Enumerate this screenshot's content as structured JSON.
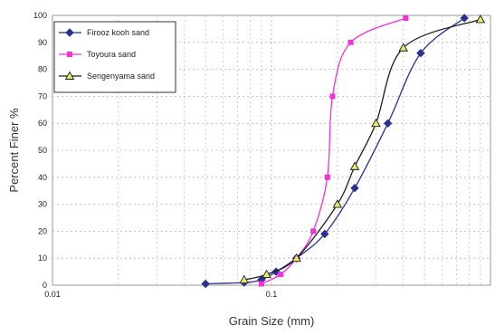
{
  "chart_data": {
    "type": "line",
    "xlabel": "Grain Size (mm)",
    "ylabel": "Percent Finer %",
    "x_scale": "log",
    "xlim": [
      0.01,
      1
    ],
    "ylim": [
      0,
      100
    ],
    "x_ticks": [
      0.01,
      0.1
    ],
    "x_tick_labels": [
      "0.01",
      "0.1"
    ],
    "y_ticks": [
      0,
      10,
      20,
      30,
      40,
      50,
      60,
      70,
      80,
      90,
      100
    ],
    "y_tick_labels": [
      "0",
      "10",
      "20",
      "30",
      "40",
      "50",
      "60",
      "70",
      "80",
      "90",
      "100"
    ],
    "grid": true,
    "legend_position": "top-left",
    "series": [
      {
        "name": "Firooz kooh sand",
        "color": "#2b2f8f",
        "marker": "diamond",
        "x": [
          0.05,
          0.075,
          0.09,
          0.105,
          0.13,
          0.175,
          0.24,
          0.34,
          0.48,
          0.76
        ],
        "y": [
          0.5,
          1,
          2,
          5,
          10,
          19,
          36,
          60,
          86,
          99
        ]
      },
      {
        "name": "Toyoura sand",
        "color": "#f032d8",
        "marker": "square",
        "x": [
          0.09,
          0.11,
          0.13,
          0.155,
          0.18,
          0.19,
          0.23,
          0.41
        ],
        "y": [
          0.5,
          4,
          10,
          20,
          40,
          70,
          90,
          99
        ]
      },
      {
        "name": "Sengenyama sand",
        "color": "#1e1e1e",
        "marker": "triangle",
        "x": [
          0.075,
          0.095,
          0.13,
          0.2,
          0.24,
          0.3,
          0.4,
          0.9
        ],
        "y": [
          2,
          4,
          10,
          30,
          44,
          60,
          88,
          98.5
        ]
      }
    ]
  }
}
